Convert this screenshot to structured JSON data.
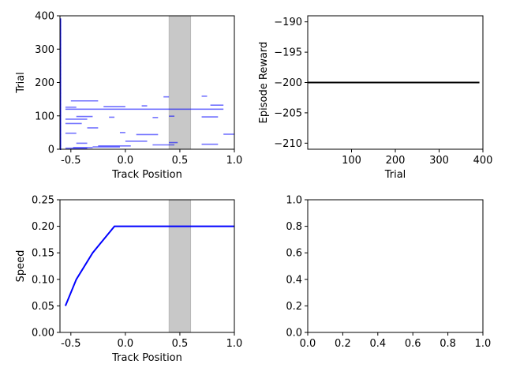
{
  "chart_data": [
    {
      "id": "track",
      "type": "scatter",
      "xlabel": "Track Position",
      "ylabel": "Trial",
      "xlim": [
        -0.6,
        1.0
      ],
      "ylim": [
        0,
        400
      ],
      "xticks": [
        "-0.5",
        "0.0",
        "0.5",
        "1.0"
      ],
      "yticks": [
        "0",
        "100",
        "200",
        "300",
        "400"
      ],
      "shaded_region": {
        "x": [
          0.4,
          0.6
        ],
        "color": "#c8c8c8"
      },
      "segment_color": "#0000ff",
      "segments": [
        {
          "trial": 3,
          "x": [
            -0.55,
            -0.35
          ]
        },
        {
          "trial": 5,
          "x": [
            -0.48,
            -0.3
          ]
        },
        {
          "trial": 7,
          "x": [
            -0.3,
            -0.05
          ]
        },
        {
          "trial": 10,
          "x": [
            -0.25,
            0.05
          ]
        },
        {
          "trial": 13,
          "x": [
            0.25,
            0.45
          ]
        },
        {
          "trial": 15,
          "x": [
            0.7,
            0.85
          ]
        },
        {
          "trial": 18,
          "x": [
            -0.45,
            -0.35
          ]
        },
        {
          "trial": 20,
          "x": [
            0.4,
            0.48
          ]
        },
        {
          "trial": 24,
          "x": [
            0.0,
            0.2
          ]
        },
        {
          "trial": 44,
          "x": [
            0.1,
            0.3
          ]
        },
        {
          "trial": 45,
          "x": [
            0.9,
            1.0
          ]
        },
        {
          "trial": 48,
          "x": [
            -0.55,
            -0.45
          ]
        },
        {
          "trial": 50,
          "x": [
            -0.05,
            0.0
          ]
        },
        {
          "trial": 64,
          "x": [
            -0.35,
            -0.25
          ]
        },
        {
          "trial": 77,
          "x": [
            -0.55,
            -0.4
          ]
        },
        {
          "trial": 90,
          "x": [
            -0.55,
            -0.35
          ]
        },
        {
          "trial": 95,
          "x": [
            0.25,
            0.3
          ]
        },
        {
          "trial": 96,
          "x": [
            -0.15,
            -0.1
          ]
        },
        {
          "trial": 97,
          "x": [
            0.7,
            0.85
          ]
        },
        {
          "trial": 98,
          "x": [
            -0.45,
            -0.3
          ]
        },
        {
          "trial": 99,
          "x": [
            0.4,
            0.45
          ]
        },
        {
          "trial": 120,
          "x": [
            -0.55,
            0.9
          ]
        },
        {
          "trial": 126,
          "x": [
            -0.55,
            -0.45
          ]
        },
        {
          "trial": 128,
          "x": [
            -0.2,
            0.0
          ]
        },
        {
          "trial": 130,
          "x": [
            0.15,
            0.2
          ]
        },
        {
          "trial": 132,
          "x": [
            0.78,
            0.9
          ]
        },
        {
          "trial": 145,
          "x": [
            -0.5,
            -0.25
          ]
        },
        {
          "trial": 157,
          "x": [
            0.35,
            0.4
          ]
        },
        {
          "trial": 159,
          "x": [
            0.7,
            0.75
          ]
        }
      ]
    },
    {
      "id": "reward",
      "type": "line",
      "xlabel": "Trial",
      "ylabel": "Episode Reward",
      "xlim": [
        0,
        400
      ],
      "ylim": [
        -211,
        -189
      ],
      "xticks": [
        "100",
        "200",
        "300",
        "400"
      ],
      "yticks": [
        "−190",
        "−195",
        "−200",
        "−205",
        "−210"
      ],
      "series": [
        {
          "color": "#000000",
          "x": [
            0,
            392
          ],
          "y": [
            -200,
            -200
          ]
        }
      ]
    },
    {
      "id": "speed",
      "type": "line",
      "xlabel": "Track Position",
      "ylabel": "Speed",
      "xlim": [
        -0.6,
        1.0
      ],
      "ylim": [
        0,
        0.25
      ],
      "xticks": [
        "-0.5",
        "0.0",
        "0.5",
        "1.0"
      ],
      "yticks": [
        "0.00",
        "0.05",
        "0.10",
        "0.15",
        "0.20",
        "0.25"
      ],
      "shaded_region": {
        "x": [
          0.4,
          0.6
        ],
        "color": "#c8c8c8"
      },
      "series": [
        {
          "color": "#0000ff",
          "x": [
            -0.55,
            -0.45,
            -0.3,
            -0.1,
            1.0
          ],
          "y": [
            0.05,
            0.1,
            0.15,
            0.2,
            0.2
          ]
        }
      ]
    },
    {
      "id": "empty",
      "type": "scatter",
      "xlabel": "",
      "ylabel": "",
      "xlim": [
        0,
        1
      ],
      "ylim": [
        0,
        1
      ],
      "xticks": [
        "0.0",
        "0.2",
        "0.4",
        "0.6",
        "0.8",
        "1.0"
      ],
      "yticks": [
        "0.0",
        "0.2",
        "0.4",
        "0.6",
        "0.8",
        "1.0"
      ],
      "series": []
    }
  ]
}
